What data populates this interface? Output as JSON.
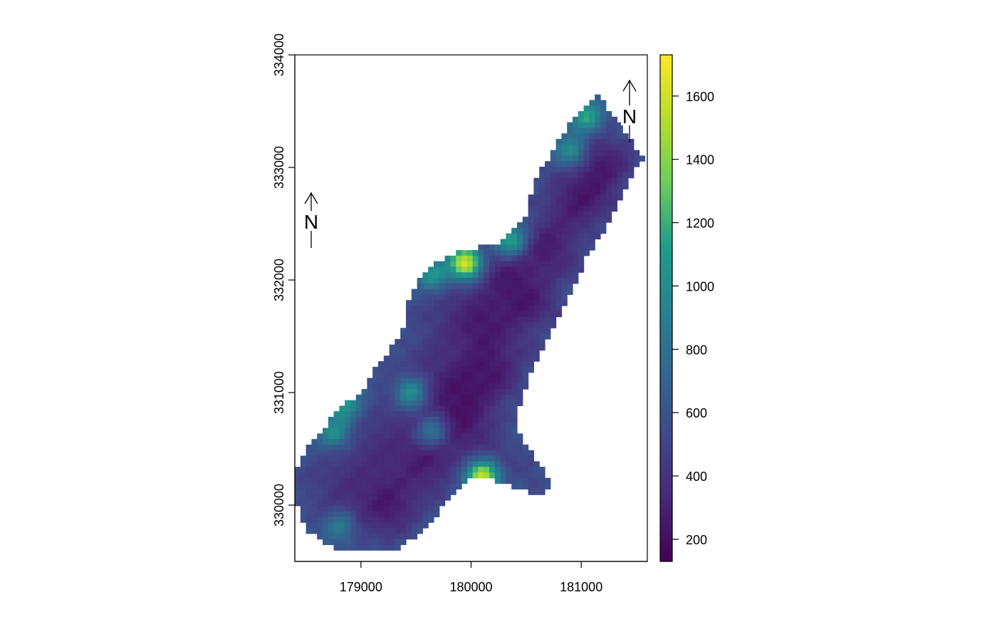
{
  "chart_data": {
    "type": "heatmap",
    "x_ticks": [
      179000,
      180000,
      181000
    ],
    "x_tick_labels": [
      "179000",
      "180000",
      "181000"
    ],
    "y_ticks": [
      330000,
      331000,
      332000,
      333000,
      334000
    ],
    "y_tick_labels": [
      "330000",
      "331000",
      "332000",
      "333000",
      "334000"
    ],
    "xlim": [
      178400,
      181600
    ],
    "ylim": [
      329500,
      334000
    ],
    "colorbar": {
      "ticks": [
        200,
        400,
        600,
        800,
        1000,
        1200,
        1400,
        1600
      ],
      "tick_labels": [
        "200",
        "400",
        "600",
        "800",
        "1000",
        "1200",
        "1400",
        "1600"
      ],
      "range": [
        130,
        1730
      ],
      "colors": [
        "#440154",
        "#482777",
        "#3f4a8a",
        "#31678e",
        "#26838f",
        "#1f9d8a",
        "#6cce5a",
        "#b6de2b",
        "#fee825"
      ]
    },
    "north_label": "N",
    "hotspots": [
      {
        "x": 180100,
        "y": 330250,
        "value": 1550
      },
      {
        "x": 179950,
        "y": 332150,
        "value": 1650
      },
      {
        "x": 181050,
        "y": 333450,
        "value": 1150
      },
      {
        "x": 180350,
        "y": 332350,
        "value": 1200
      },
      {
        "x": 179450,
        "y": 331000,
        "value": 1000
      },
      {
        "x": 178850,
        "y": 330900,
        "value": 1050
      },
      {
        "x": 179650,
        "y": 332050,
        "value": 1050
      },
      {
        "x": 178750,
        "y": 330650,
        "value": 1000
      },
      {
        "x": 180900,
        "y": 333150,
        "value": 1000
      },
      {
        "x": 178800,
        "y": 329800,
        "value": 850
      },
      {
        "x": 179650,
        "y": 330650,
        "value": 850
      }
    ],
    "lows": [
      {
        "x": 179250,
        "y": 330000,
        "value": 180
      },
      {
        "x": 179600,
        "y": 330400,
        "value": 200
      },
      {
        "x": 179900,
        "y": 331000,
        "value": 170
      },
      {
        "x": 180200,
        "y": 331200,
        "value": 180
      },
      {
        "x": 180100,
        "y": 331600,
        "value": 200
      },
      {
        "x": 180500,
        "y": 331800,
        "value": 180
      },
      {
        "x": 180700,
        "y": 332300,
        "value": 200
      },
      {
        "x": 181000,
        "y": 332700,
        "value": 190
      },
      {
        "x": 181200,
        "y": 333000,
        "value": 180
      },
      {
        "x": 179900,
        "y": 330700,
        "value": 200
      },
      {
        "x": 180300,
        "y": 332100,
        "value": 210
      }
    ]
  }
}
